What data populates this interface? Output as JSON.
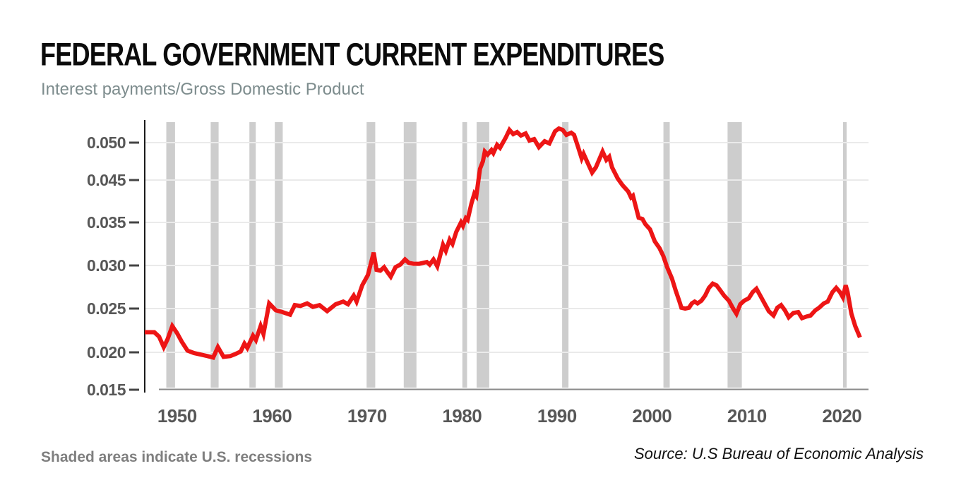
{
  "header": {
    "title": "FEDERAL GOVERNMENT CURRENT EXPENDITURES",
    "subtitle": "Interest payments/Gross Domestic Product"
  },
  "footer": {
    "note": "Shaded areas indicate U.S. recessions",
    "source": "Source: U.S Bureau of Economic Analysis"
  },
  "colors": {
    "line": "#ed1515",
    "recession_band": "#cdcdcd",
    "gridline": "#eaeaea",
    "y_axis": "#1a1a1a",
    "x_baseline": "#8a8a8a",
    "tick_dash": "#444444",
    "tick_text": "#575757",
    "title_text": "#0b0b0b",
    "subtitle_text": "#7d8c8d",
    "note_text": "#7f7f7f",
    "source_text": "#111111"
  },
  "chart_data": {
    "type": "line",
    "title": "FEDERAL GOVERNMENT CURRENT EXPENDITURES",
    "subtitle": "Interest payments/Gross Domestic Product",
    "xlabel": "",
    "ylabel": "",
    "grid": "horizontal only",
    "legend": "none",
    "x_range_years": [
      1946.6,
      2022.8
    ],
    "x_ticks": [
      1950,
      1960,
      1970,
      1980,
      1990,
      2000,
      2010,
      2020
    ],
    "y_ticks": [
      {
        "label": "0.050",
        "value": 0.05
      },
      {
        "label": "0.045",
        "value": 0.045
      },
      {
        "label": "0.035",
        "value": 0.035
      },
      {
        "label": "0.030",
        "value": 0.03
      },
      {
        "label": "0.025",
        "value": 0.025
      },
      {
        "label": "0.020",
        "value": 0.02
      },
      {
        "label": "0.015",
        "value": 0.015
      }
    ],
    "recessions": [
      [
        1948.87,
        1949.79
      ],
      [
        1953.54,
        1954.37
      ],
      [
        1957.62,
        1958.29
      ],
      [
        1960.29,
        1961.12
      ],
      [
        1969.96,
        1970.87
      ],
      [
        1973.87,
        1975.21
      ],
      [
        1980.04,
        1980.54
      ],
      [
        1981.54,
        1982.87
      ],
      [
        1990.54,
        1991.21
      ],
      [
        2001.21,
        2001.87
      ],
      [
        2007.96,
        2009.46
      ],
      [
        2020.12,
        2020.29
      ]
    ],
    "series": [
      {
        "name": "Interest payments/Gross Domestic Product",
        "points": [
          [
            1946.6,
            0.0223
          ],
          [
            1947.6,
            0.0223
          ],
          [
            1948.1,
            0.0218
          ],
          [
            1948.6,
            0.0206
          ],
          [
            1949.0,
            0.0215
          ],
          [
            1949.5,
            0.023
          ],
          [
            1950.0,
            0.0222
          ],
          [
            1950.5,
            0.0212
          ],
          [
            1951.1,
            0.0202
          ],
          [
            1951.8,
            0.0199
          ],
          [
            1952.5,
            0.0197
          ],
          [
            1953.2,
            0.0195
          ],
          [
            1953.8,
            0.0193
          ],
          [
            1954.3,
            0.0206
          ],
          [
            1954.9,
            0.0194
          ],
          [
            1955.6,
            0.0195
          ],
          [
            1956.2,
            0.0198
          ],
          [
            1956.7,
            0.0201
          ],
          [
            1957.1,
            0.021
          ],
          [
            1957.4,
            0.0205
          ],
          [
            1958.0,
            0.0219
          ],
          [
            1958.3,
            0.0214
          ],
          [
            1958.8,
            0.023
          ],
          [
            1959.1,
            0.0221
          ],
          [
            1959.7,
            0.0256
          ],
          [
            1960.4,
            0.0248
          ],
          [
            1961.1,
            0.0246
          ],
          [
            1961.9,
            0.0243
          ],
          [
            1962.4,
            0.0254
          ],
          [
            1963.0,
            0.0253
          ],
          [
            1963.7,
            0.0256
          ],
          [
            1964.3,
            0.0252
          ],
          [
            1965.0,
            0.0254
          ],
          [
            1965.8,
            0.0247
          ],
          [
            1966.7,
            0.0255
          ],
          [
            1967.5,
            0.0258
          ],
          [
            1968.0,
            0.0255
          ],
          [
            1968.6,
            0.0265
          ],
          [
            1968.9,
            0.0258
          ],
          [
            1969.5,
            0.0277
          ],
          [
            1970.1,
            0.0289
          ],
          [
            1970.7,
            0.0315
          ],
          [
            1971.0,
            0.0295
          ],
          [
            1971.4,
            0.0294
          ],
          [
            1971.8,
            0.0298
          ],
          [
            1972.1,
            0.0293
          ],
          [
            1972.5,
            0.0287
          ],
          [
            1973.0,
            0.0298
          ],
          [
            1973.5,
            0.0301
          ],
          [
            1974.0,
            0.0307
          ],
          [
            1974.4,
            0.0303
          ],
          [
            1974.9,
            0.0302
          ],
          [
            1975.5,
            0.0302
          ],
          [
            1976.3,
            0.0304
          ],
          [
            1976.6,
            0.0301
          ],
          [
            1977.0,
            0.0307
          ],
          [
            1977.4,
            0.0299
          ],
          [
            1978.0,
            0.0324
          ],
          [
            1978.3,
            0.0317
          ],
          [
            1978.7,
            0.033
          ],
          [
            1979.0,
            0.0325
          ],
          [
            1979.4,
            0.0339
          ],
          [
            1979.9,
            0.035
          ],
          [
            1980.1,
            0.0346
          ],
          [
            1980.4,
            0.036
          ],
          [
            1980.6,
            0.0356
          ],
          [
            1981.0,
            0.0395
          ],
          [
            1981.3,
            0.0418
          ],
          [
            1981.5,
            0.0412
          ],
          [
            1981.9,
            0.0465
          ],
          [
            1982.2,
            0.0475
          ],
          [
            1982.4,
            0.0488
          ],
          [
            1982.7,
            0.0484
          ],
          [
            1983.1,
            0.049
          ],
          [
            1983.3,
            0.0486
          ],
          [
            1983.7,
            0.0497
          ],
          [
            1984.0,
            0.0493
          ],
          [
            1984.6,
            0.0507
          ],
          [
            1985.0,
            0.0518
          ],
          [
            1985.4,
            0.0512
          ],
          [
            1985.8,
            0.0515
          ],
          [
            1986.2,
            0.051
          ],
          [
            1986.7,
            0.0513
          ],
          [
            1987.1,
            0.0503
          ],
          [
            1987.6,
            0.0505
          ],
          [
            1988.1,
            0.0494
          ],
          [
            1988.7,
            0.0502
          ],
          [
            1989.2,
            0.0499
          ],
          [
            1989.8,
            0.0516
          ],
          [
            1990.2,
            0.052
          ],
          [
            1990.6,
            0.0518
          ],
          [
            1991.0,
            0.0511
          ],
          [
            1991.5,
            0.0514
          ],
          [
            1991.8,
            0.0511
          ],
          [
            1992.2,
            0.0495
          ],
          [
            1992.6,
            0.0479
          ],
          [
            1992.8,
            0.0485
          ],
          [
            1993.2,
            0.0474
          ],
          [
            1993.7,
            0.046
          ],
          [
            1994.1,
            0.0467
          ],
          [
            1994.8,
            0.0488
          ],
          [
            1995.2,
            0.0477
          ],
          [
            1995.5,
            0.0481
          ],
          [
            1995.8,
            0.0467
          ],
          [
            1996.4,
            0.0452
          ],
          [
            1996.9,
            0.0438
          ],
          [
            1997.5,
            0.0423
          ],
          [
            1997.8,
            0.0409
          ],
          [
            1998.0,
            0.0413
          ],
          [
            1998.6,
            0.0361
          ],
          [
            1999.0,
            0.0358
          ],
          [
            1999.3,
            0.0348
          ],
          [
            1999.8,
            0.0342
          ],
          [
            2000.3,
            0.0328
          ],
          [
            2000.8,
            0.032
          ],
          [
            2001.2,
            0.0311
          ],
          [
            2001.6,
            0.0298
          ],
          [
            2002.1,
            0.0285
          ],
          [
            2002.5,
            0.0271
          ],
          [
            2002.9,
            0.0258
          ],
          [
            2003.1,
            0.0251
          ],
          [
            2003.5,
            0.025
          ],
          [
            2003.9,
            0.0251
          ],
          [
            2004.2,
            0.0256
          ],
          [
            2004.5,
            0.0258
          ],
          [
            2004.8,
            0.0256
          ],
          [
            2005.2,
            0.0259
          ],
          [
            2005.6,
            0.0265
          ],
          [
            2006.0,
            0.0274
          ],
          [
            2006.4,
            0.0279
          ],
          [
            2006.8,
            0.0277
          ],
          [
            2007.2,
            0.0271
          ],
          [
            2007.6,
            0.0265
          ],
          [
            2008.1,
            0.0259
          ],
          [
            2008.5,
            0.0251
          ],
          [
            2008.9,
            0.0244
          ],
          [
            2009.3,
            0.0255
          ],
          [
            2009.7,
            0.0259
          ],
          [
            2010.2,
            0.0262
          ],
          [
            2010.6,
            0.0269
          ],
          [
            2011.0,
            0.0273
          ],
          [
            2011.4,
            0.0265
          ],
          [
            2011.9,
            0.0255
          ],
          [
            2012.3,
            0.0247
          ],
          [
            2012.8,
            0.0242
          ],
          [
            2013.2,
            0.0251
          ],
          [
            2013.6,
            0.0254
          ],
          [
            2014.0,
            0.0248
          ],
          [
            2014.4,
            0.024
          ],
          [
            2014.9,
            0.0245
          ],
          [
            2015.4,
            0.0246
          ],
          [
            2015.8,
            0.0239
          ],
          [
            2016.3,
            0.0241
          ],
          [
            2016.7,
            0.0242
          ],
          [
            2017.2,
            0.0248
          ],
          [
            2017.6,
            0.0251
          ],
          [
            2018.1,
            0.0256
          ],
          [
            2018.5,
            0.0258
          ],
          [
            2019.0,
            0.0269
          ],
          [
            2019.4,
            0.0274
          ],
          [
            2019.8,
            0.0269
          ],
          [
            2020.1,
            0.0263
          ],
          [
            2020.4,
            0.0277
          ],
          [
            2020.6,
            0.0269
          ],
          [
            2021.0,
            0.0244
          ],
          [
            2021.4,
            0.023
          ],
          [
            2021.9,
            0.0217
          ]
        ]
      }
    ]
  }
}
